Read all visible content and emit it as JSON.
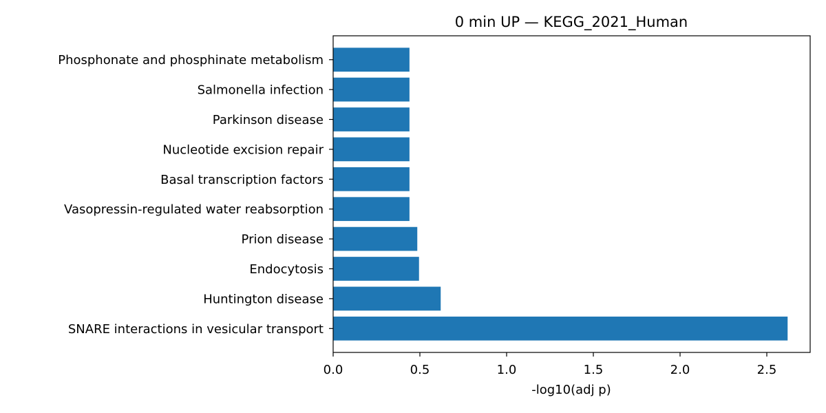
{
  "chart_data": {
    "type": "bar",
    "orientation": "horizontal",
    "title": "0 min UP — KEGG_2021_Human",
    "xlabel": "-log10(adj p)",
    "ylabel": "",
    "xlim": [
      0,
      2.75
    ],
    "xticks": [
      "0.0",
      "0.5",
      "1.0",
      "1.5",
      "2.0",
      "2.5"
    ],
    "grid": false,
    "bar_color": "#1f77b4",
    "categories": [
      "SNARE interactions in vesicular transport",
      "Huntington disease",
      "Endocytosis",
      "Prion disease",
      "Vasopressin-regulated water reabsorption",
      "Basal transcription factors",
      "Nucleotide excision repair",
      "Parkinson disease",
      "Salmonella infection",
      "Phosphonate and phosphinate metabolism"
    ],
    "values": [
      2.62,
      0.62,
      0.495,
      0.485,
      0.44,
      0.44,
      0.44,
      0.44,
      0.44,
      0.44
    ]
  }
}
